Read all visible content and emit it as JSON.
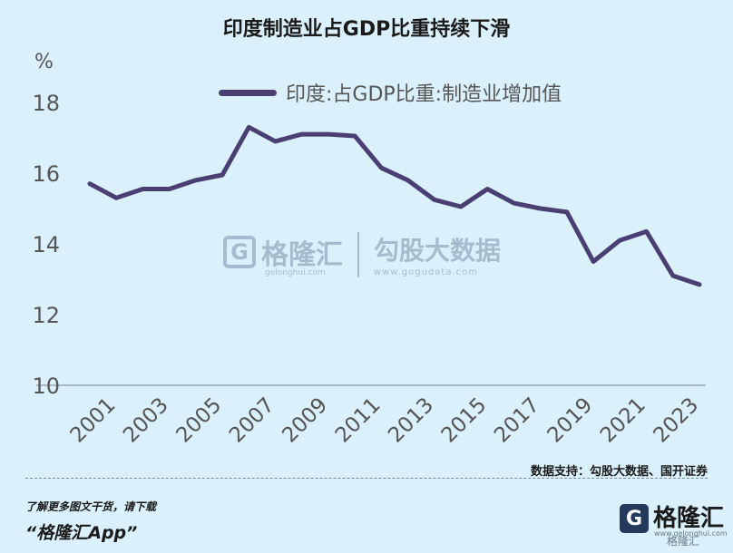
{
  "title": "印度制造业占GDP比重持续下滑",
  "unit": "%",
  "legend": "印度:占GDP比重:制造业增加值",
  "source": "数据支持：勾股大数据、国开证券",
  "promo_line1": "了解更多图文干货，请下载",
  "promo_line2": "“格隆汇App”",
  "watermark": {
    "name": "格隆汇",
    "site": "gelonghui.com",
    "right_big": "勾股大数据",
    "right_small": "www.gogudata.com"
  },
  "brand": {
    "name": "格隆汇",
    "sub": "www.gelonghui.com",
    "corner": "格隆汇"
  },
  "colors": {
    "background": "#daf0fb",
    "line": "#4a3f73",
    "axis": "#a9b8c4"
  },
  "chart_data": {
    "type": "line",
    "title": "印度制造业占GDP比重持续下滑",
    "ylabel": "%",
    "ylim": [
      10,
      18
    ],
    "yticks": [
      10,
      12,
      14,
      16,
      18
    ],
    "xticks": [
      "2001",
      "2003",
      "2005",
      "2007",
      "2009",
      "2011",
      "2013",
      "2015",
      "2017",
      "2019",
      "2021",
      "2023"
    ],
    "x": [
      2000,
      2001,
      2002,
      2003,
      2004,
      2005,
      2006,
      2007,
      2008,
      2009,
      2010,
      2011,
      2012,
      2013,
      2014,
      2015,
      2016,
      2017,
      2018,
      2019,
      2020,
      2021,
      2022,
      2023
    ],
    "series": [
      {
        "name": "印度:占GDP比重:制造业增加值",
        "values": [
          15.7,
          15.3,
          15.55,
          15.55,
          15.8,
          15.95,
          17.3,
          16.9,
          17.1,
          17.1,
          17.05,
          16.15,
          15.8,
          15.25,
          15.05,
          15.55,
          15.15,
          15.0,
          14.9,
          13.5,
          14.1,
          14.35,
          13.1,
          12.85
        ]
      }
    ],
    "grid": false,
    "legend_position": "top"
  }
}
